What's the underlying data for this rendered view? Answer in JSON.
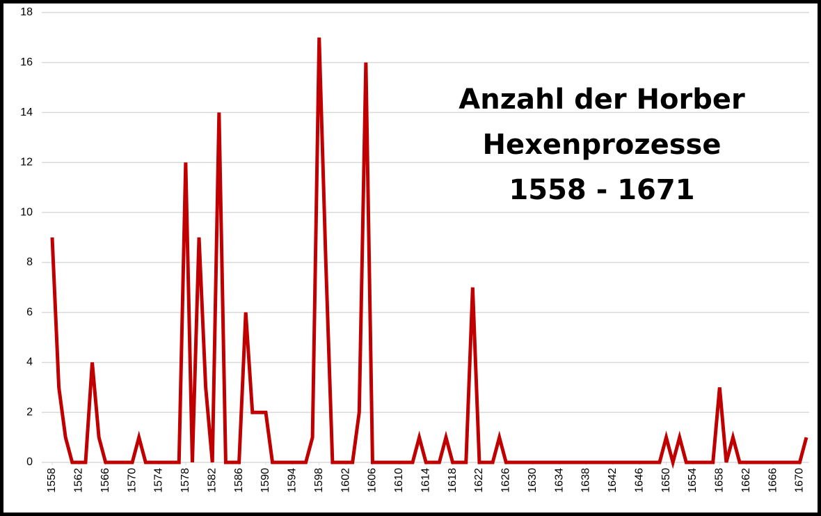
{
  "chart_data": {
    "type": "line",
    "title": [
      "Anzahl der Horber",
      "Hexenprozesse",
      "1558 - 1671"
    ],
    "x": [
      1558,
      1559,
      1560,
      1561,
      1562,
      1563,
      1564,
      1565,
      1566,
      1567,
      1568,
      1569,
      1570,
      1571,
      1572,
      1573,
      1574,
      1575,
      1576,
      1577,
      1578,
      1579,
      1580,
      1581,
      1582,
      1583,
      1584,
      1585,
      1586,
      1587,
      1588,
      1589,
      1590,
      1591,
      1592,
      1593,
      1594,
      1595,
      1596,
      1597,
      1598,
      1599,
      1600,
      1601,
      1602,
      1603,
      1604,
      1605,
      1606,
      1607,
      1608,
      1609,
      1610,
      1611,
      1612,
      1613,
      1614,
      1615,
      1616,
      1617,
      1618,
      1619,
      1620,
      1621,
      1622,
      1623,
      1624,
      1625,
      1626,
      1627,
      1628,
      1629,
      1630,
      1631,
      1632,
      1633,
      1634,
      1635,
      1636,
      1637,
      1638,
      1639,
      1640,
      1641,
      1642,
      1643,
      1644,
      1645,
      1646,
      1647,
      1648,
      1649,
      1650,
      1651,
      1652,
      1653,
      1654,
      1655,
      1656,
      1657,
      1658,
      1659,
      1660,
      1661,
      1662,
      1663,
      1664,
      1665,
      1666,
      1667,
      1668,
      1669,
      1670,
      1671
    ],
    "series": [
      {
        "color": "#c00000",
        "values": [
          9,
          3,
          1,
          0,
          0,
          0,
          4,
          1,
          0,
          0,
          0,
          0,
          0,
          1,
          0,
          0,
          0,
          0,
          0,
          0,
          12,
          0,
          9,
          3,
          0,
          14,
          0,
          0,
          0,
          6,
          2,
          2,
          2,
          0,
          0,
          0,
          0,
          0,
          0,
          1,
          17,
          8,
          0,
          0,
          0,
          0,
          2,
          16,
          0,
          0,
          0,
          0,
          0,
          0,
          0,
          1,
          0,
          0,
          0,
          1,
          0,
          0,
          0,
          7,
          0,
          0,
          0,
          1,
          0,
          0,
          0,
          0,
          0,
          0,
          0,
          0,
          0,
          0,
          0,
          0,
          0,
          0,
          0,
          0,
          0,
          0,
          0,
          0,
          0,
          0,
          0,
          0,
          1,
          0,
          1,
          0,
          0,
          0,
          0,
          0,
          3,
          0,
          1,
          0,
          0,
          0,
          0,
          0,
          0,
          0,
          0,
          0,
          0,
          1
        ]
      }
    ],
    "xlim": [
      1558,
      1671
    ],
    "xticks": [
      1558,
      1562,
      1566,
      1570,
      1574,
      1578,
      1582,
      1586,
      1590,
      1594,
      1598,
      1602,
      1606,
      1610,
      1614,
      1618,
      1622,
      1626,
      1630,
      1634,
      1638,
      1642,
      1646,
      1650,
      1654,
      1658,
      1662,
      1666,
      1670
    ],
    "ylim": [
      0,
      18
    ],
    "yticks": [
      0,
      2,
      4,
      6,
      8,
      10,
      12,
      14,
      16,
      18
    ],
    "grid": true
  }
}
